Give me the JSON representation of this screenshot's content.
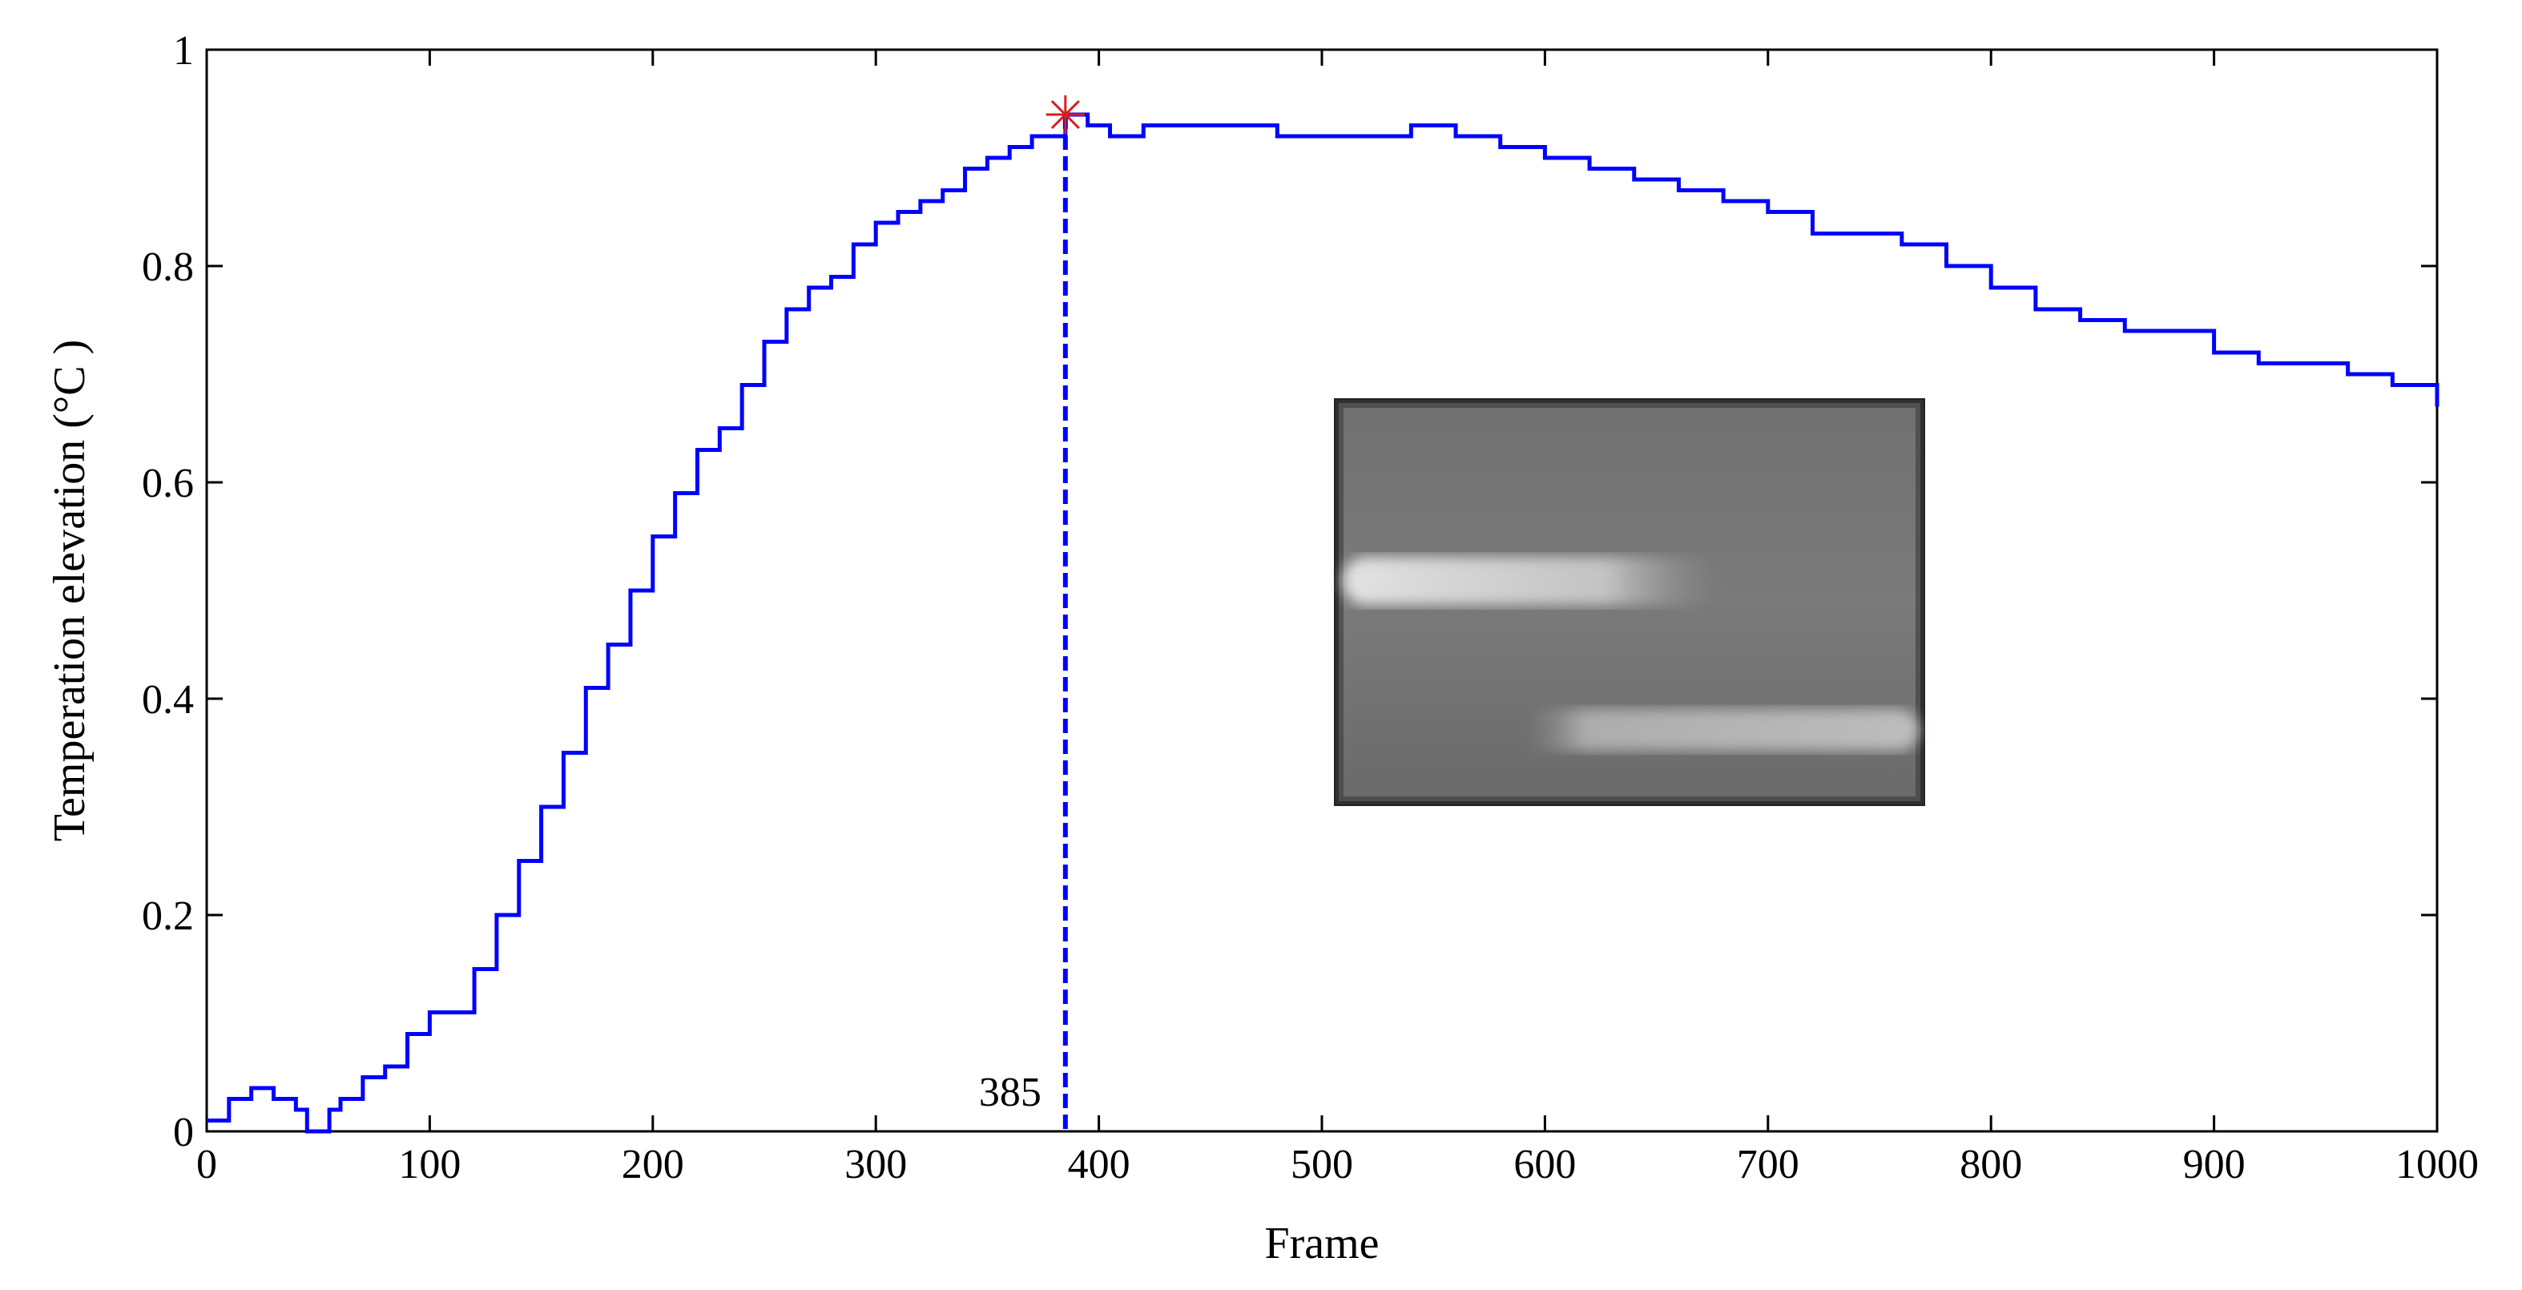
{
  "chart_data": {
    "type": "line",
    "xlabel": "Frame",
    "ylabel": "Temperation elevation (°C )",
    "xlim": [
      0,
      1000
    ],
    "ylim": [
      0,
      1
    ],
    "x_ticks": [
      0,
      100,
      200,
      300,
      400,
      500,
      600,
      700,
      800,
      900,
      1000
    ],
    "y_ticks": [
      0,
      0.2,
      0.4,
      0.6,
      0.8,
      1
    ],
    "y_tick_labels": [
      "0",
      "0.2",
      "0.4",
      "0.6",
      "0.8",
      "1"
    ],
    "grid": false,
    "series": [
      {
        "color": "#0000ff",
        "step": true,
        "x": [
          0,
          10,
          20,
          30,
          40,
          45,
          50,
          55,
          60,
          70,
          80,
          90,
          100,
          110,
          120,
          130,
          140,
          150,
          160,
          170,
          180,
          190,
          200,
          210,
          220,
          230,
          240,
          250,
          260,
          270,
          280,
          290,
          300,
          310,
          320,
          330,
          340,
          350,
          360,
          370,
          380,
          385,
          395,
          405,
          420,
          440,
          460,
          480,
          500,
          520,
          540,
          550,
          560,
          580,
          600,
          620,
          640,
          660,
          680,
          700,
          720,
          740,
          760,
          780,
          800,
          820,
          840,
          860,
          880,
          900,
          920,
          940,
          960,
          980,
          1000
        ],
        "y": [
          0.01,
          0.03,
          0.04,
          0.03,
          0.02,
          0.0,
          0.0,
          0.02,
          0.03,
          0.05,
          0.06,
          0.09,
          0.11,
          0.11,
          0.15,
          0.2,
          0.25,
          0.3,
          0.35,
          0.41,
          0.45,
          0.5,
          0.55,
          0.59,
          0.63,
          0.65,
          0.69,
          0.73,
          0.76,
          0.78,
          0.79,
          0.82,
          0.84,
          0.85,
          0.86,
          0.87,
          0.89,
          0.9,
          0.91,
          0.92,
          0.92,
          0.94,
          0.93,
          0.92,
          0.93,
          0.93,
          0.93,
          0.92,
          0.92,
          0.92,
          0.93,
          0.93,
          0.92,
          0.91,
          0.9,
          0.89,
          0.88,
          0.87,
          0.86,
          0.85,
          0.83,
          0.83,
          0.82,
          0.8,
          0.78,
          0.76,
          0.75,
          0.74,
          0.74,
          0.72,
          0.71,
          0.71,
          0.7,
          0.69,
          0.67
        ]
      }
    ],
    "marker": {
      "x": 385,
      "y": 0.94,
      "symbol": "asterisk",
      "color": "#d62020"
    },
    "vline": {
      "x": 385,
      "label": "385",
      "style": "dashed",
      "color": "#0000ff"
    },
    "inset": {
      "kind": "thermal-image",
      "description_visible": false
    }
  }
}
